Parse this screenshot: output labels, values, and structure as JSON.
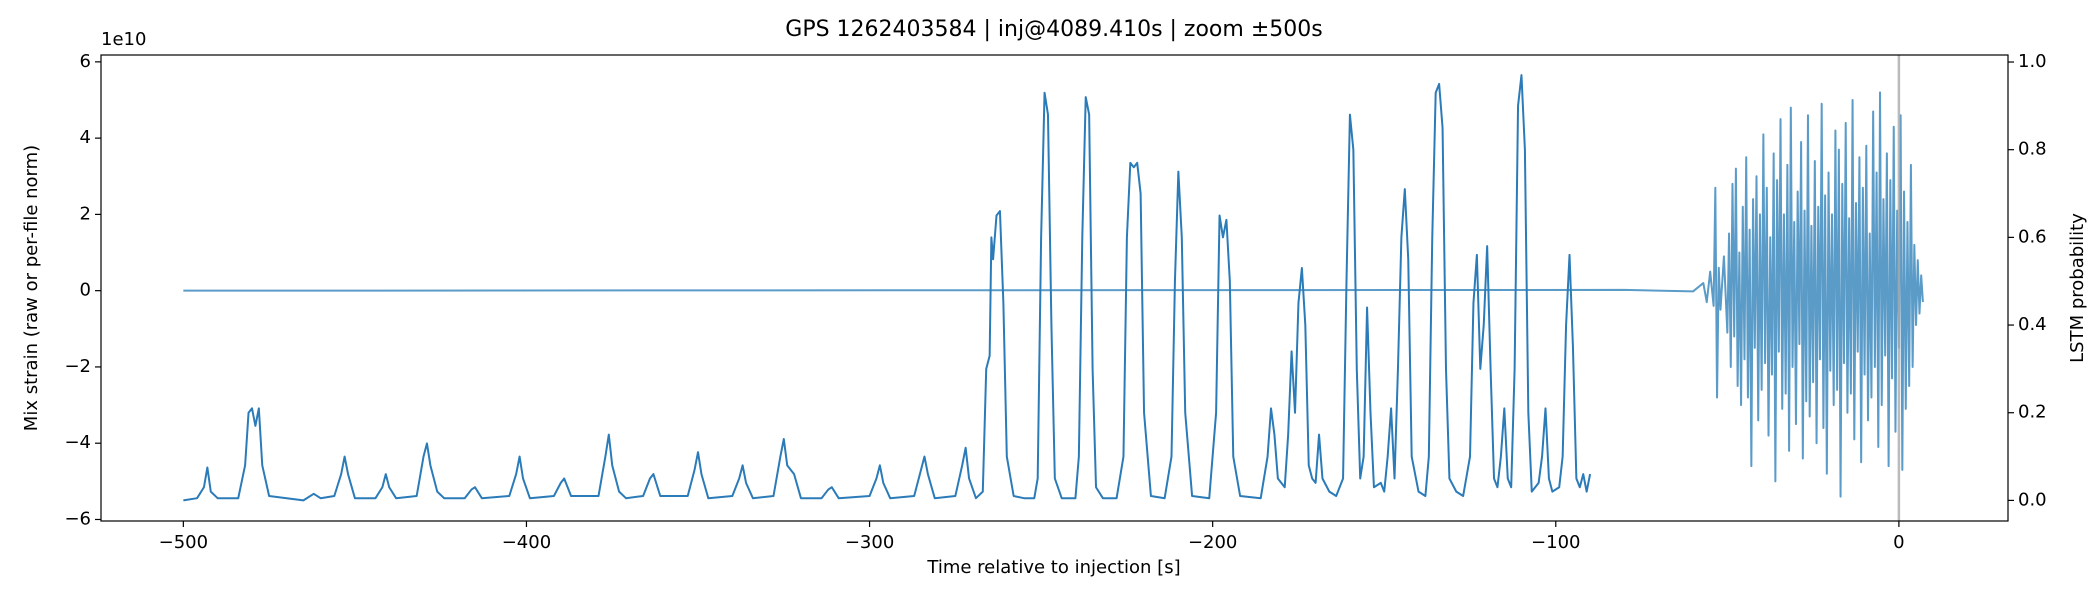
{
  "chart_data": {
    "type": "line",
    "title": "GPS 1262403584 | inj@4089.410s | zoom ±500s",
    "xlabel": "Time relative to injection [s]",
    "ylabel": "Mix strain (raw or per-file norm)",
    "y2label": "LSTM probability",
    "y_offset_label": "1e10",
    "xlim": [
      -524,
      31.8
    ],
    "xticks": [
      {
        "value": -500,
        "label": "−500"
      },
      {
        "value": -400,
        "label": "−400"
      },
      {
        "value": -300,
        "label": "−300"
      },
      {
        "value": -200,
        "label": "−200"
      },
      {
        "value": -100,
        "label": "−100"
      },
      0
    ],
    "ylim": [
      -6.04,
      6.18
    ],
    "yticks": [
      {
        "value": -6,
        "label": "−6"
      },
      {
        "value": -4,
        "label": "−4"
      },
      {
        "value": -2,
        "label": "−2"
      },
      0,
      2,
      4,
      6
    ],
    "y2lim": [
      -0.047,
      1.016
    ],
    "y2ticks": [
      {
        "value": 0,
        "label": "0.0"
      },
      0.2,
      0.4,
      0.6,
      0.8,
      {
        "value": 1,
        "label": "1.0"
      }
    ],
    "vlines": [
      0
    ],
    "vline_color": "#aaaaaa",
    "series": [
      {
        "color": "#5b9bc8",
        "x": [
          -500,
          -80,
          -60,
          -57,
          -56,
          -55,
          -54,
          -53.5,
          -53,
          -52.5,
          -52,
          -51,
          -50,
          -49.5,
          -49,
          -48.5,
          -48,
          -47.5,
          -47,
          -46.5,
          -46,
          -45.5,
          -45,
          -44.5,
          -44,
          -43.5,
          -43,
          -42.5,
          -42,
          -41.5,
          -41,
          -40.5,
          -40,
          -39.5,
          -39,
          -38.5,
          -38,
          -37.5,
          -37,
          -36.5,
          -36,
          -35.5,
          -35,
          -34.5,
          -34,
          -33.5,
          -33,
          -32.5,
          -32,
          -31.5,
          -31,
          -30.5,
          -30,
          -29.5,
          -29,
          -28.5,
          -28,
          -27.5,
          -27,
          -26.5,
          -26,
          -25.5,
          -25,
          -24.5,
          -24,
          -23.5,
          -23,
          -22.5,
          -22,
          -21.5,
          -21,
          -20.5,
          -20,
          -19.5,
          -19,
          -18.5,
          -18,
          -17.5,
          -17,
          -16.5,
          -16,
          -15.5,
          -15,
          -14.5,
          -14,
          -13.5,
          -13,
          -12.5,
          -12,
          -11.5,
          -11,
          -10.5,
          -10,
          -9.5,
          -9,
          -8.5,
          -8,
          -7.5,
          -7,
          -6.5,
          -6,
          -5.5,
          -5,
          -4.5,
          -4,
          -3.5,
          -3,
          -2.5,
          -2,
          -1.5,
          -1,
          -0.5,
          0,
          0.5,
          1,
          1.5,
          2,
          2.5,
          3,
          3.5,
          4,
          4.5,
          5,
          5.5,
          6,
          6.5,
          7
        ],
        "values": [
          0,
          0.02,
          -0.02,
          0.2,
          -0.3,
          0.5,
          -0.4,
          2.7,
          -2.8,
          0.6,
          -0.5,
          0.9,
          -1.1,
          1.5,
          -2.0,
          2.8,
          -1.2,
          3.2,
          -2.5,
          1.0,
          -3.0,
          2.2,
          -1.8,
          3.5,
          -2.8,
          1.6,
          -4.6,
          2.4,
          -1.5,
          3.0,
          -3.4,
          2.0,
          -2.6,
          4.1,
          -1.9,
          2.7,
          -3.8,
          1.4,
          -2.2,
          3.6,
          -5.0,
          2.9,
          -1.6,
          4.5,
          -3.1,
          2.0,
          -2.7,
          3.3,
          -4.2,
          4.8,
          -2.0,
          1.8,
          -3.5,
          2.6,
          -1.4,
          3.9,
          -4.4,
          2.1,
          -2.9,
          4.6,
          -3.3,
          1.7,
          -2.4,
          3.4,
          -4.0,
          2.2,
          -1.8,
          4.9,
          -3.6,
          2.5,
          -4.8,
          3.1,
          -2.1,
          2.0,
          -3.0,
          4.2,
          -2.6,
          3.7,
          -5.4,
          2.8,
          -1.9,
          4.4,
          -3.2,
          1.9,
          -2.7,
          5.0,
          -3.9,
          2.3,
          -1.6,
          3.5,
          -4.5,
          2.7,
          -2.2,
          3.8,
          -3.4,
          1.5,
          -2.8,
          4.7,
          -2.0,
          3.1,
          -4.1,
          5.2,
          -3.0,
          2.4,
          -1.7,
          3.6,
          -4.6,
          2.9,
          -2.3,
          4.3,
          -3.7,
          2.1,
          -1.5,
          4.6,
          -4.7,
          2.6,
          -3.1,
          1.8,
          -2.5,
          3.3,
          -2.0,
          1.2,
          -0.9,
          0.8,
          -0.6,
          0.4,
          -0.3
        ]
      },
      {
        "color": "#2b7bb9",
        "axis": "y2",
        "x": [
          -500,
          -496,
          -494,
          -493,
          -492,
          -490,
          -484,
          -482,
          -481,
          -480,
          -479,
          -478,
          -477,
          -475,
          -465,
          -462,
          -460,
          -456,
          -454,
          -453,
          -452,
          -450,
          -444,
          -442,
          -441,
          -440,
          -438,
          -432,
          -430,
          -429,
          -428,
          -426,
          -424,
          -418,
          -416,
          -415,
          -413,
          -405,
          -403,
          -402,
          -401,
          -399,
          -392,
          -390,
          -389,
          -387,
          -379,
          -377,
          -376,
          -375,
          -373,
          -371,
          -366,
          -364,
          -363,
          -361,
          -353,
          -351,
          -350,
          -349,
          -347,
          -340,
          -338,
          -337,
          -336,
          -334,
          -328,
          -326,
          -325,
          -324,
          -322,
          -320,
          -314,
          -312,
          -311,
          -309,
          -300,
          -298,
          -297,
          -296,
          -294,
          -287,
          -285,
          -284,
          -283,
          -281,
          -275,
          -273,
          -272,
          -271,
          -269,
          -267,
          -266,
          -265,
          -264.5,
          -264,
          -263,
          -262,
          -261,
          -260,
          -258,
          -255,
          -252,
          -251,
          -250,
          -249,
          -248,
          -247,
          -246,
          -244,
          -240,
          -239,
          -238,
          -237,
          -236,
          -235,
          -234,
          -232,
          -228,
          -226,
          -225,
          -224,
          -223,
          -222,
          -221,
          -220,
          -218,
          -214,
          -212,
          -211,
          -210,
          -209,
          -208,
          -206,
          -201,
          -199,
          -198,
          -197,
          -196,
          -195,
          -194,
          -192,
          -186,
          -184,
          -183,
          -182,
          -181,
          -179,
          -178,
          -177,
          -176,
          -175,
          -174,
          -173,
          -172,
          -171,
          -170,
          -169,
          -168,
          -166,
          -164,
          -162,
          -161,
          -160,
          -159,
          -158,
          -157,
          -156,
          -155,
          -154,
          -153,
          -151,
          -150,
          -149,
          -148,
          -147,
          -146,
          -145,
          -144,
          -143,
          -142,
          -140,
          -138,
          -137,
          -136,
          -135,
          -134,
          -133,
          -132,
          -131,
          -129,
          -127,
          -125,
          -124,
          -123,
          -122,
          -121,
          -120,
          -119,
          -118,
          -117,
          -116,
          -115,
          -114,
          -113,
          -112,
          -111,
          -110,
          -109,
          -108,
          -107,
          -105,
          -104,
          -103,
          -102,
          -101,
          -99,
          -98,
          -97,
          -96,
          -95,
          -94,
          -93,
          -92,
          -91,
          -90
        ],
        "values": [
          0,
          0.005,
          0.03,
          0.075,
          0.02,
          0.005,
          0.005,
          0.08,
          0.2,
          0.21,
          0.17,
          0.21,
          0.08,
          0.01,
          0,
          0.015,
          0.005,
          0.01,
          0.06,
          0.1,
          0.06,
          0.005,
          0.005,
          0.03,
          0.06,
          0.03,
          0.005,
          0.01,
          0.1,
          0.13,
          0.08,
          0.02,
          0.005,
          0.005,
          0.025,
          0.03,
          0.005,
          0.01,
          0.06,
          0.1,
          0.05,
          0.005,
          0.01,
          0.04,
          0.05,
          0.01,
          0.01,
          0.1,
          0.15,
          0.08,
          0.02,
          0.005,
          0.01,
          0.05,
          0.06,
          0.01,
          0.01,
          0.07,
          0.11,
          0.06,
          0.005,
          0.01,
          0.05,
          0.08,
          0.04,
          0.005,
          0.01,
          0.1,
          0.14,
          0.08,
          0.06,
          0.005,
          0.005,
          0.025,
          0.03,
          0.005,
          0.01,
          0.05,
          0.08,
          0.04,
          0.005,
          0.01,
          0.07,
          0.1,
          0.06,
          0.005,
          0.01,
          0.08,
          0.12,
          0.05,
          0.005,
          0.02,
          0.3,
          0.33,
          0.6,
          0.55,
          0.65,
          0.66,
          0.45,
          0.1,
          0.01,
          0.005,
          0.005,
          0.05,
          0.6,
          0.93,
          0.88,
          0.4,
          0.05,
          0.005,
          0.005,
          0.1,
          0.6,
          0.92,
          0.88,
          0.3,
          0.03,
          0.005,
          0.005,
          0.1,
          0.6,
          0.77,
          0.76,
          0.77,
          0.7,
          0.2,
          0.01,
          0.005,
          0.1,
          0.5,
          0.75,
          0.6,
          0.2,
          0.01,
          0.005,
          0.2,
          0.65,
          0.6,
          0.64,
          0.5,
          0.1,
          0.01,
          0.005,
          0.1,
          0.21,
          0.15,
          0.05,
          0.03,
          0.15,
          0.34,
          0.2,
          0.45,
          0.53,
          0.4,
          0.08,
          0.05,
          0.04,
          0.15,
          0.05,
          0.02,
          0.01,
          0.05,
          0.5,
          0.88,
          0.8,
          0.3,
          0.05,
          0.1,
          0.44,
          0.2,
          0.03,
          0.04,
          0.02,
          0.1,
          0.21,
          0.05,
          0.3,
          0.6,
          0.71,
          0.55,
          0.1,
          0.02,
          0.01,
          0.1,
          0.6,
          0.93,
          0.95,
          0.85,
          0.3,
          0.05,
          0.02,
          0.01,
          0.1,
          0.45,
          0.56,
          0.3,
          0.4,
          0.58,
          0.3,
          0.05,
          0.03,
          0.1,
          0.21,
          0.05,
          0.03,
          0.3,
          0.9,
          0.97,
          0.8,
          0.2,
          0.02,
          0.04,
          0.1,
          0.21,
          0.05,
          0.02,
          0.03,
          0.1,
          0.4,
          0.56,
          0.35,
          0.05,
          0.03,
          0.06,
          0.02,
          0.06
        ]
      }
    ]
  }
}
